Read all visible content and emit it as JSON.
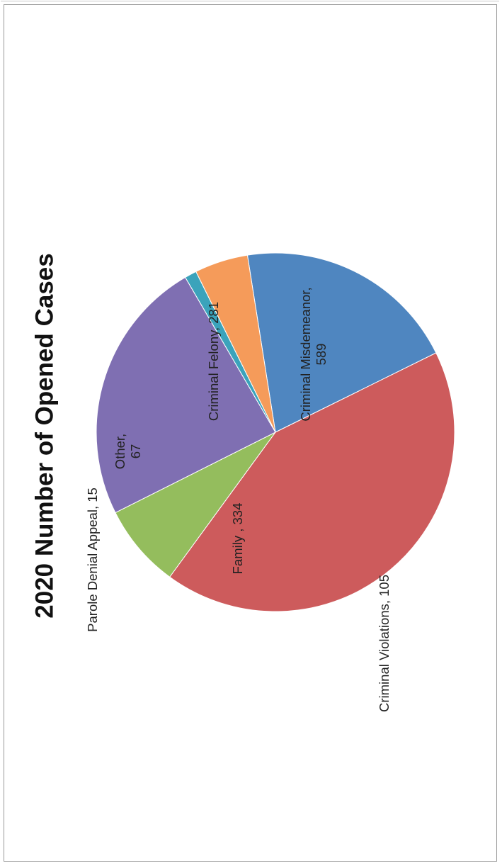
{
  "chart_data": {
    "type": "pie",
    "title": "2020 Number of Opened Cases",
    "orientation": "rotated-90-ccw",
    "slices": [
      {
        "name": "Criminal Felony",
        "value": 281,
        "color": "#4f86c0",
        "label_lines": [
          "Criminal Felony, 281"
        ]
      },
      {
        "name": "Criminal Misdemeanor",
        "value": 589,
        "color": "#cd5b5c",
        "label_lines": [
          "Criminal Misdemeanor,",
          "589"
        ]
      },
      {
        "name": "Criminal Violations",
        "value": 105,
        "color": "#94bd5d",
        "label_lines": [
          "Criminal Violations, 105"
        ]
      },
      {
        "name": "Family",
        "value": 334,
        "color": "#7f6fb2",
        "label_lines": [
          "Family , 334"
        ]
      },
      {
        "name": "Parole Denial Appeal",
        "value": 15,
        "color": "#3ba3bb",
        "label_lines": [
          "Parole Denial Appeal, 15"
        ]
      },
      {
        "name": "Other",
        "value": 67,
        "color": "#f59b5a",
        "label_lines": [
          "Other,",
          "67"
        ]
      }
    ]
  }
}
